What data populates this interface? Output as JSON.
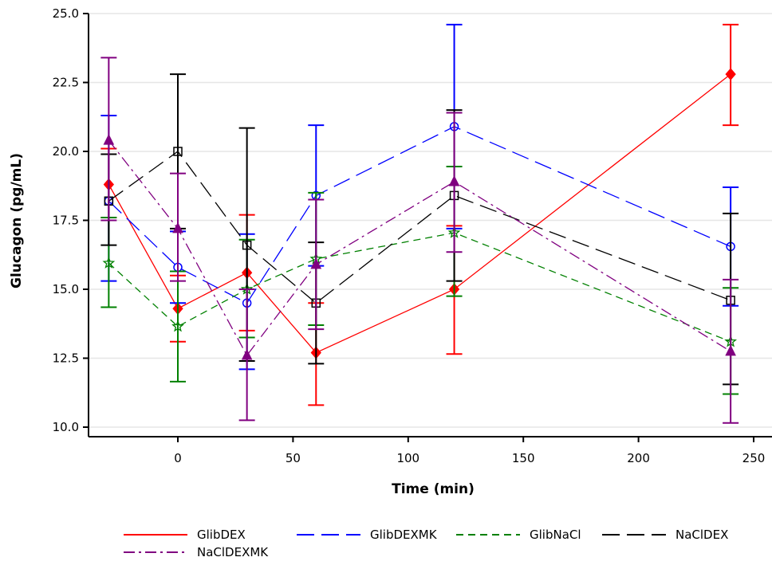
{
  "chart_data": {
    "type": "line",
    "title": "",
    "xlabel": "Time (min)",
    "ylabel": "Glucagon (pg/mL)",
    "xlim": [
      -38,
      257
    ],
    "ylim": [
      10.0,
      25.0
    ],
    "xticks": [
      0,
      50,
      100,
      150,
      200,
      250
    ],
    "yticks": [
      10.0,
      12.5,
      15.0,
      17.5,
      20.0,
      22.5,
      25.0
    ],
    "xtick_labels": [
      "0",
      "50",
      "100",
      "150",
      "200",
      "250"
    ],
    "ytick_labels": [
      "10.0",
      "12.5",
      "15.0",
      "17.5",
      "20.0",
      "22.5",
      "25.0"
    ],
    "grid": "horizontal",
    "legend_position": "bottom",
    "series": [
      {
        "name": "GlibDEX",
        "color": "#ff0000",
        "dash": "solid",
        "marker": "diamond-filled",
        "x": [
          -30,
          0,
          30,
          60,
          120,
          240
        ],
        "y": [
          18.8,
          14.3,
          15.6,
          12.7,
          15.0,
          22.8
        ],
        "lower": [
          17.6,
          13.1,
          13.5,
          10.8,
          12.65,
          20.95
        ],
        "upper": [
          20.1,
          15.5,
          17.7,
          14.5,
          17.3,
          24.6
        ]
      },
      {
        "name": "GlibDEXMK",
        "color": "#0000ff",
        "dash": "long-dash",
        "marker": "circle-open",
        "x": [
          -30,
          0,
          30,
          60,
          120,
          240
        ],
        "y": [
          18.2,
          15.8,
          14.5,
          18.4,
          20.9,
          16.55
        ],
        "lower": [
          15.3,
          14.5,
          12.1,
          15.85,
          17.2,
          14.4
        ],
        "upper": [
          21.3,
          17.1,
          17.0,
          20.95,
          24.6,
          18.7
        ]
      },
      {
        "name": "GlibNaCl",
        "color": "#008000",
        "dash": "short-dash",
        "marker": "star-open",
        "x": [
          -30,
          0,
          30,
          60,
          120,
          240
        ],
        "y": [
          15.95,
          13.65,
          15.0,
          16.1,
          17.05,
          13.1
        ],
        "lower": [
          14.35,
          11.65,
          13.25,
          13.7,
          14.75,
          11.2
        ],
        "upper": [
          17.6,
          15.65,
          16.8,
          18.5,
          19.45,
          15.05
        ]
      },
      {
        "name": "NaClDEX",
        "color": "#000000",
        "dash": "long-dash",
        "marker": "square-open",
        "x": [
          -30,
          0,
          30,
          60,
          120,
          240
        ],
        "y": [
          18.2,
          20.0,
          16.6,
          14.5,
          18.4,
          14.6
        ],
        "lower": [
          16.6,
          17.2,
          12.4,
          12.3,
          15.3,
          11.55
        ],
        "upper": [
          19.9,
          22.8,
          20.85,
          16.7,
          21.5,
          17.75
        ]
      },
      {
        "name": "NaClDEXMK",
        "color": "#800080",
        "dash": "dash-dot",
        "marker": "triangle-filled",
        "x": [
          -30,
          0,
          30,
          60,
          120,
          240
        ],
        "y": [
          20.4,
          17.2,
          12.6,
          15.9,
          18.9,
          12.75
        ],
        "lower": [
          17.5,
          15.3,
          10.25,
          13.55,
          16.35,
          10.15
        ],
        "upper": [
          23.4,
          19.2,
          15.0,
          18.25,
          21.4,
          15.35
        ]
      }
    ]
  }
}
